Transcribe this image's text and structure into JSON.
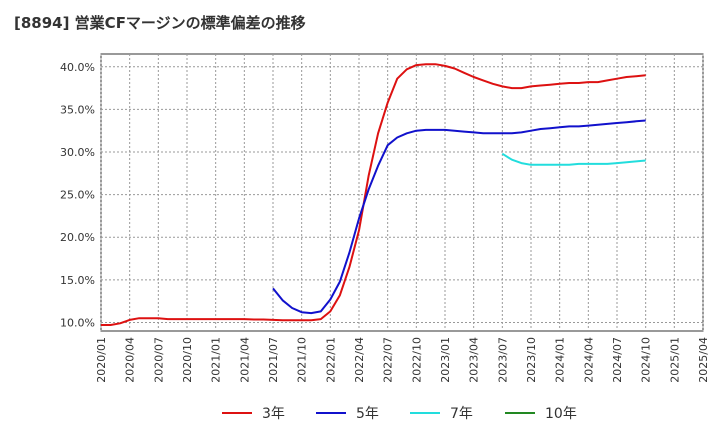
{
  "chart_data": {
    "type": "line",
    "title": "[8894]  営業CFマージンの標準偏差の推移",
    "xlabel": "",
    "ylabel": "",
    "ylim": [
      0.09,
      0.415
    ],
    "yticks": [
      0.1,
      0.15,
      0.2,
      0.25,
      0.3,
      0.35,
      0.4
    ],
    "ytick_labels": [
      "10.0%",
      "15.0%",
      "20.0%",
      "25.0%",
      "30.0%",
      "35.0%",
      "40.0%"
    ],
    "xticks": [
      "2020/01",
      "2020/04",
      "2020/07",
      "2020/10",
      "2021/01",
      "2021/04",
      "2021/07",
      "2021/10",
      "2022/01",
      "2022/04",
      "2022/07",
      "2022/10",
      "2023/01",
      "2023/04",
      "2023/07",
      "2023/10",
      "2024/01",
      "2024/04",
      "2024/07",
      "2024/10",
      "2025/01",
      "2025/04"
    ],
    "grid": true,
    "legend_position": "bottom",
    "series": [
      {
        "name": "3年",
        "color": "#dd1111",
        "x": [
          "2020/01",
          "2020/02",
          "2020/03",
          "2020/04",
          "2020/05",
          "2020/06",
          "2020/07",
          "2020/08",
          "2020/09",
          "2020/10",
          "2020/11",
          "2020/12",
          "2021/01",
          "2021/02",
          "2021/03",
          "2021/04",
          "2021/05",
          "2021/06",
          "2021/07",
          "2021/08",
          "2021/09",
          "2021/10",
          "2021/11",
          "2021/12",
          "2022/01",
          "2022/02",
          "2022/03",
          "2022/04",
          "2022/05",
          "2022/06",
          "2022/07",
          "2022/08",
          "2022/09",
          "2022/10",
          "2022/11",
          "2022/12",
          "2023/01",
          "2023/02",
          "2023/03",
          "2023/04",
          "2023/05",
          "2023/06",
          "2023/07",
          "2023/08",
          "2023/09",
          "2023/10",
          "2023/11",
          "2023/12",
          "2024/01",
          "2024/02",
          "2024/03",
          "2024/04",
          "2024/05",
          "2024/06",
          "2024/07",
          "2024/08",
          "2024/09",
          "2024/10"
        ],
        "values": [
          0.097,
          0.097,
          0.099,
          0.103,
          0.105,
          0.105,
          0.105,
          0.104,
          0.104,
          0.104,
          0.104,
          0.104,
          0.104,
          0.104,
          0.104,
          0.104,
          0.1035,
          0.1035,
          0.103,
          0.1025,
          0.1025,
          0.1025,
          0.1025,
          0.104,
          0.113,
          0.132,
          0.165,
          0.208,
          0.272,
          0.322,
          0.358,
          0.386,
          0.397,
          0.402,
          0.403,
          0.403,
          0.401,
          0.398,
          0.393,
          0.388,
          0.384,
          0.38,
          0.377,
          0.375,
          0.375,
          0.377,
          0.378,
          0.379,
          0.38,
          0.381,
          0.381,
          0.382,
          0.382,
          0.384,
          0.386,
          0.388,
          0.389,
          0.39
        ]
      },
      {
        "name": "5年",
        "color": "#1111cc",
        "x": [
          "2021/07",
          "2021/08",
          "2021/09",
          "2021/10",
          "2021/11",
          "2021/12",
          "2022/01",
          "2022/02",
          "2022/03",
          "2022/04",
          "2022/05",
          "2022/06",
          "2022/07",
          "2022/08",
          "2022/09",
          "2022/10",
          "2022/11",
          "2022/12",
          "2023/01",
          "2023/02",
          "2023/03",
          "2023/04",
          "2023/05",
          "2023/06",
          "2023/07",
          "2023/08",
          "2023/09",
          "2023/10",
          "2023/11",
          "2023/12",
          "2024/01",
          "2024/02",
          "2024/03",
          "2024/04",
          "2024/05",
          "2024/06",
          "2024/07",
          "2024/08",
          "2024/09",
          "2024/10"
        ],
        "values": [
          0.14,
          0.126,
          0.117,
          0.112,
          0.111,
          0.113,
          0.127,
          0.148,
          0.182,
          0.222,
          0.256,
          0.284,
          0.308,
          0.317,
          0.322,
          0.325,
          0.326,
          0.326,
          0.326,
          0.325,
          0.324,
          0.323,
          0.322,
          0.322,
          0.322,
          0.322,
          0.323,
          0.325,
          0.327,
          0.328,
          0.329,
          0.33,
          0.33,
          0.331,
          0.332,
          0.333,
          0.334,
          0.335,
          0.336,
          0.337
        ]
      },
      {
        "name": "7年",
        "color": "#22dddd",
        "x": [
          "2023/07",
          "2023/08",
          "2023/09",
          "2023/10",
          "2023/11",
          "2023/12",
          "2024/01",
          "2024/02",
          "2024/03",
          "2024/04",
          "2024/05",
          "2024/06",
          "2024/07",
          "2024/08",
          "2024/09",
          "2024/10"
        ],
        "values": [
          0.298,
          0.291,
          0.287,
          0.285,
          0.285,
          0.285,
          0.285,
          0.285,
          0.286,
          0.286,
          0.286,
          0.286,
          0.287,
          0.288,
          0.289,
          0.29
        ]
      },
      {
        "name": "10年",
        "color": "#228822",
        "x": [],
        "values": []
      }
    ]
  }
}
